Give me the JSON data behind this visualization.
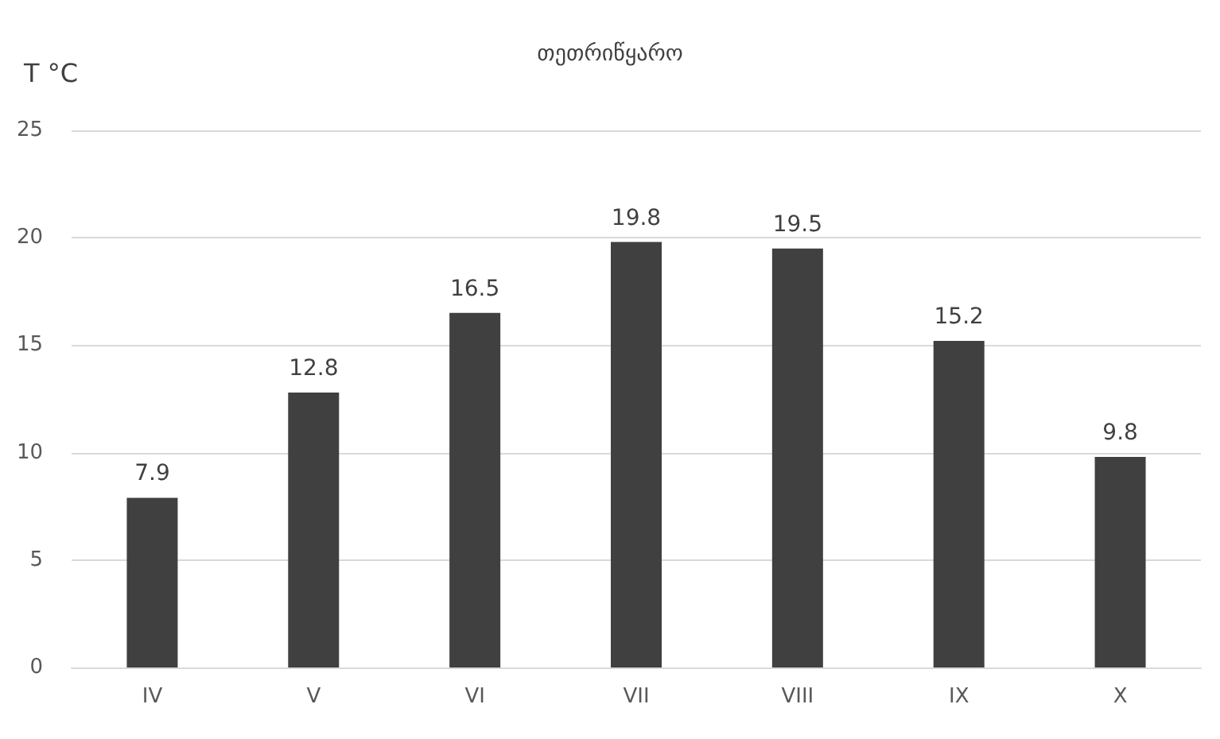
{
  "chart_data": {
    "type": "bar",
    "title": "თეთრიწყარო",
    "ylabel": "T °C",
    "categories": [
      "IV",
      "V",
      "VI",
      "VII",
      "VIII",
      "IX",
      "X"
    ],
    "values": [
      7.9,
      12.8,
      16.5,
      19.8,
      19.5,
      15.2,
      9.8
    ],
    "color": "#404040",
    "ylim": [
      0,
      25
    ],
    "yticks": [
      0,
      5,
      10,
      15,
      20,
      25
    ],
    "grid": "y",
    "data_labels": true
  }
}
